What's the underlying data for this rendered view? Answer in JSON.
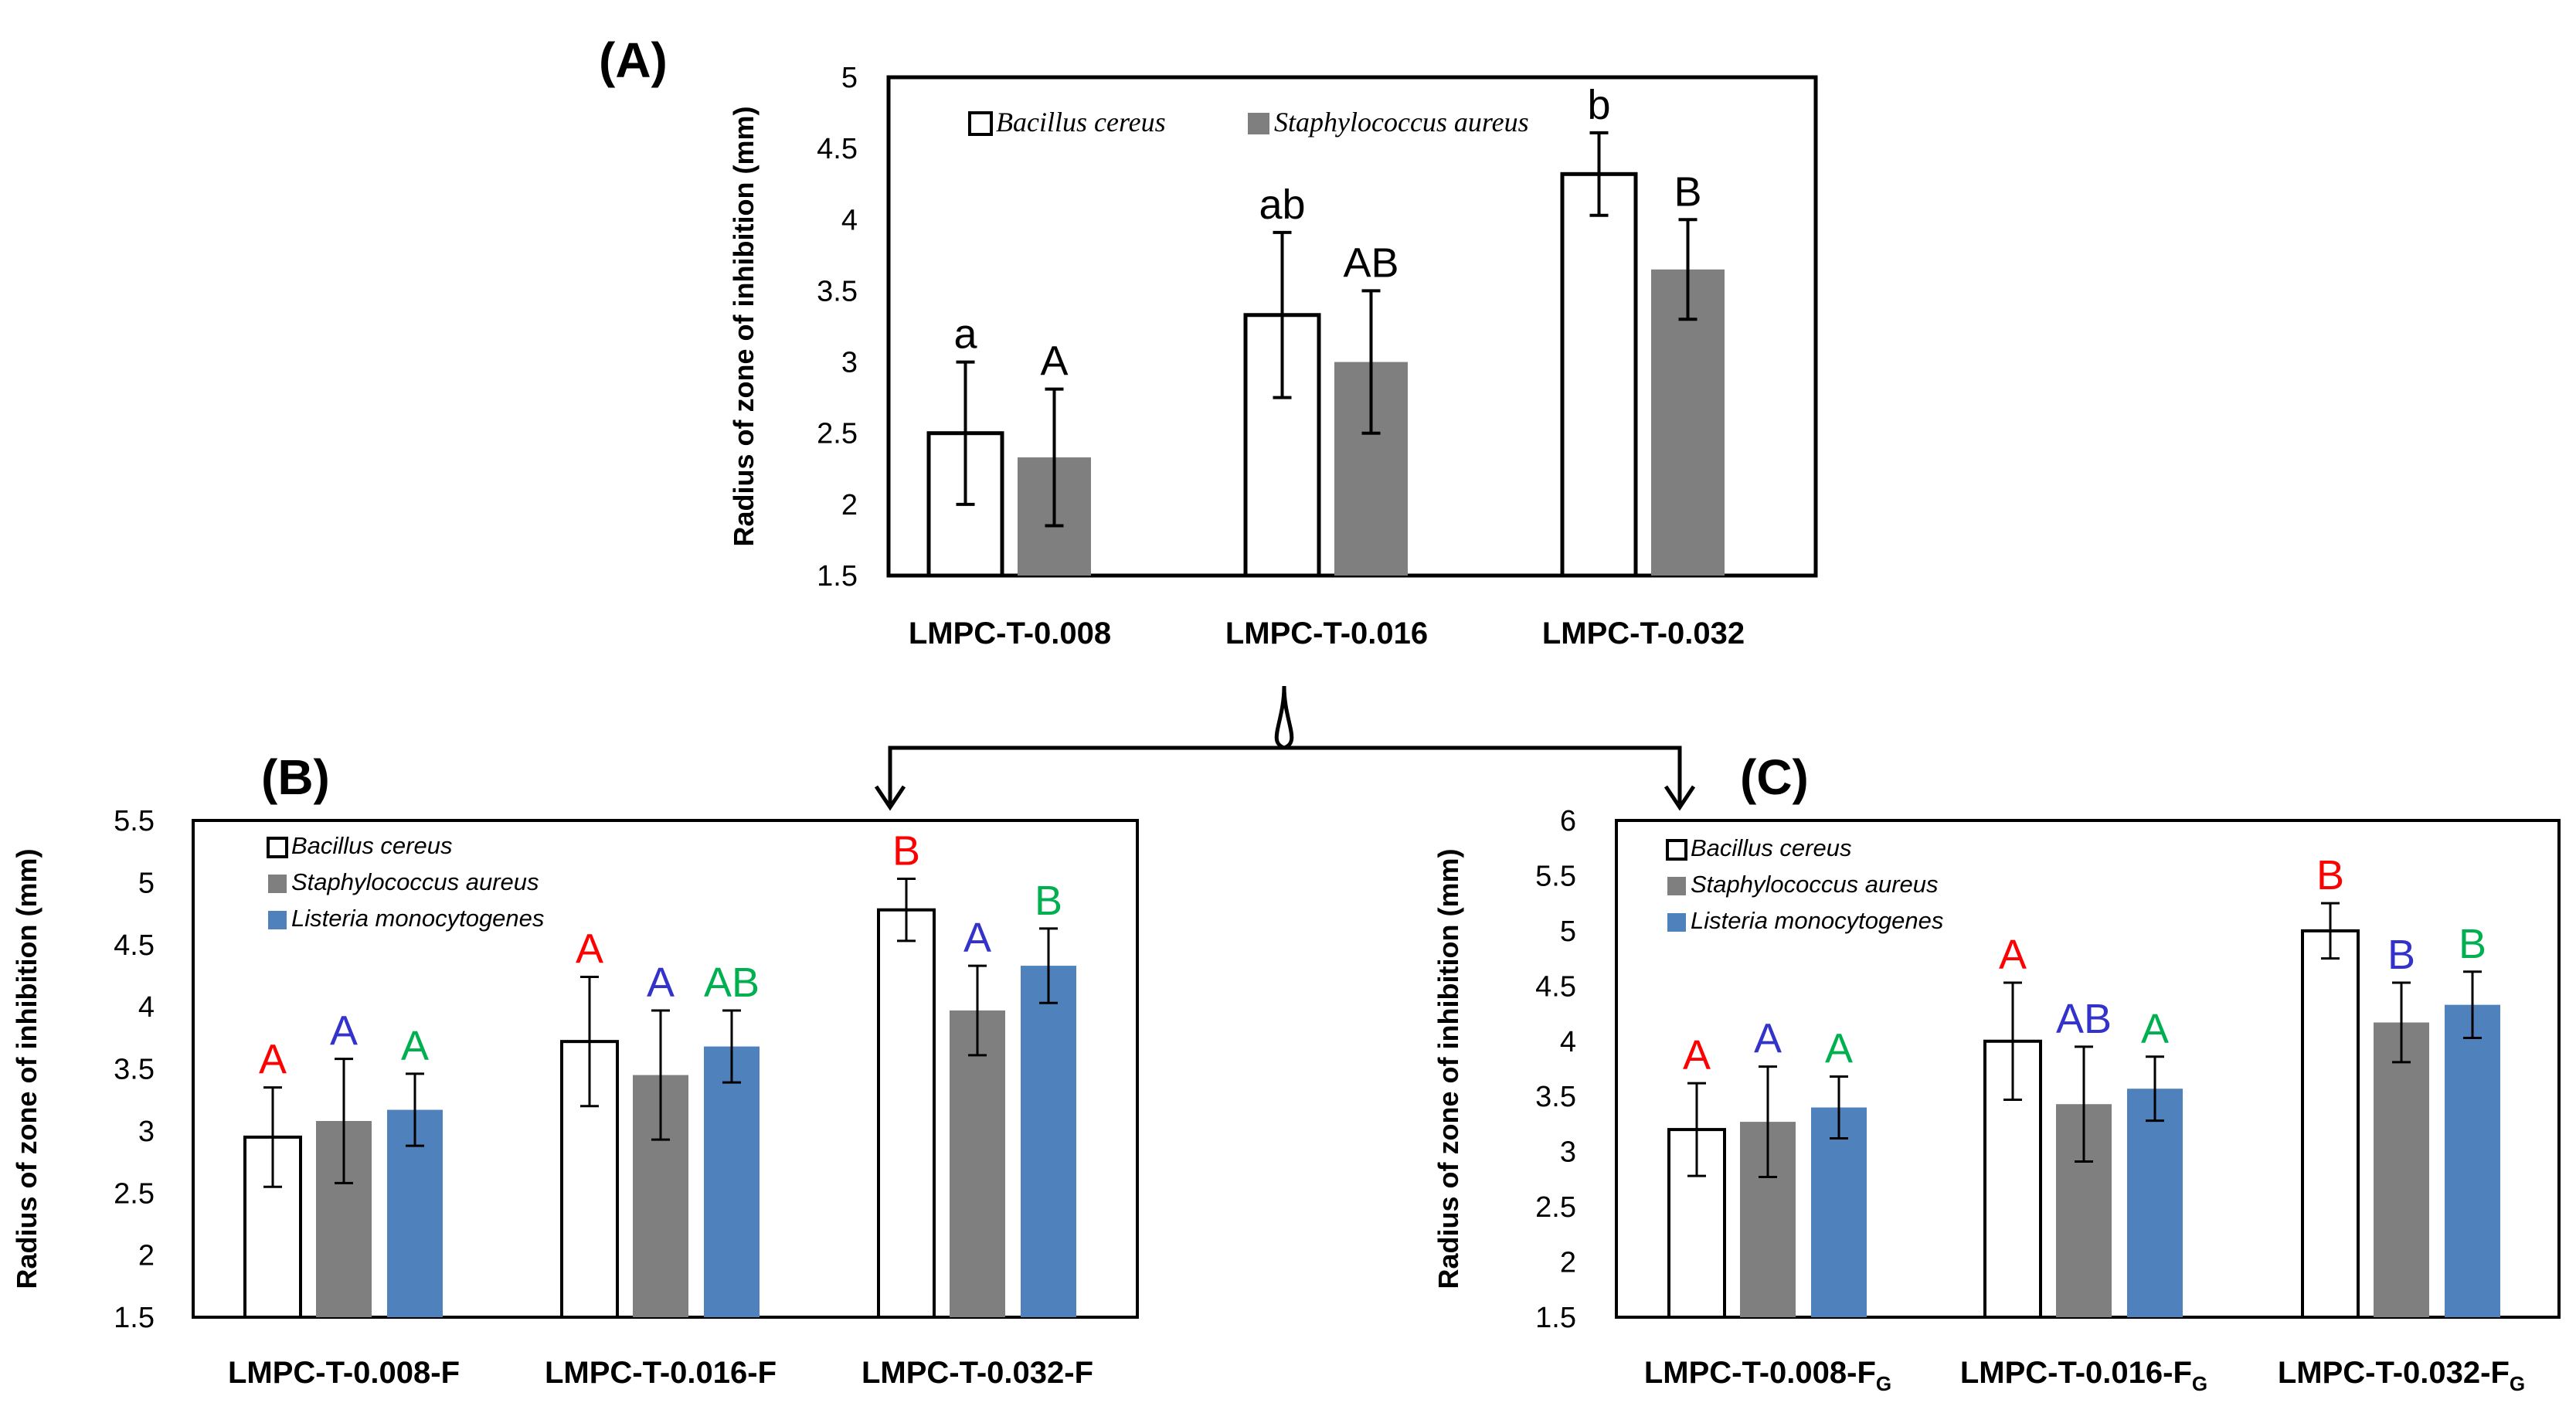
{
  "colors": {
    "bacillus_fill": "#ffffff",
    "staph_fill": "#7f7f7f",
    "listeria_fill": "#4f81bd",
    "letter_red": "#ff0000",
    "letter_blue": "#3333cc",
    "letter_green": "#00b050",
    "axis": "#000000"
  },
  "chart_data": [
    {
      "id": "A",
      "panel_label": "(A)",
      "type": "bar",
      "ylabel": "Radius of zone of inhibition (mm)",
      "ylim": [
        1.5,
        5
      ],
      "yticks": [
        1.5,
        2,
        2.5,
        3,
        3.5,
        4,
        4.5,
        5
      ],
      "ytick_labels": [
        "1.5",
        "2",
        "2.5",
        "3",
        "3.5",
        "4",
        "4.5",
        "5"
      ],
      "legend_position": "top, horizontal",
      "categories": [
        {
          "pre": "LMPC-T-0.008",
          "sub": ""
        },
        {
          "pre": "LMPC-T-0.016",
          "sub": ""
        },
        {
          "pre": "LMPC-T-0.032",
          "sub": ""
        }
      ],
      "series": [
        {
          "name": "Bacillus cereus",
          "color": "#ffffff",
          "italic_serif": true,
          "values": [
            2.5,
            3.33,
            4.32
          ],
          "errors": [
            0.5,
            0.58,
            0.29
          ],
          "letters": [
            "a",
            "ab",
            "b"
          ],
          "letter_color": "#000000"
        },
        {
          "name": "Staphylococcus aureus",
          "color": "#7f7f7f",
          "italic_serif": true,
          "values": [
            2.33,
            3.0,
            3.65
          ],
          "errors": [
            0.48,
            0.5,
            0.35
          ],
          "letters": [
            "A",
            "AB",
            "B"
          ],
          "letter_color": "#000000"
        }
      ]
    },
    {
      "id": "B",
      "panel_label": "(B)",
      "type": "bar",
      "ylabel": "Radius of zone of inhibition (mm)",
      "ylim": [
        1.5,
        5.5
      ],
      "yticks": [
        1.5,
        2,
        2.5,
        3,
        3.5,
        4,
        4.5,
        5,
        5.5
      ],
      "ytick_labels": [
        "1.5",
        "2",
        "2.5",
        "3",
        "3.5",
        "4",
        "4.5",
        "5",
        "5.5"
      ],
      "legend_position": "top-left, vertical",
      "categories": [
        {
          "pre": "LMPC-T-0.008-F",
          "sub": ""
        },
        {
          "pre": "LMPC-T-0.016-F",
          "sub": ""
        },
        {
          "pre": "LMPC-T-0.032-F",
          "sub": ""
        }
      ],
      "series": [
        {
          "name": "Bacillus cereus",
          "color": "#ffffff",
          "italic_serif": false,
          "values": [
            2.95,
            3.72,
            4.78
          ],
          "errors": [
            0.4,
            0.52,
            0.25
          ],
          "letters": [
            "A",
            "A",
            "B"
          ],
          "letter_color": "#ff0000"
        },
        {
          "name": "Staphylococcus aureus",
          "color": "#7f7f7f",
          "italic_serif": false,
          "values": [
            3.08,
            3.45,
            3.97
          ],
          "errors": [
            0.5,
            0.52,
            0.36
          ],
          "letters": [
            "A",
            "A",
            "A"
          ],
          "letter_color": "#3333cc"
        },
        {
          "name": "Listeria monocytogenes",
          "color": "#4f81bd",
          "italic_serif": false,
          "values": [
            3.17,
            3.68,
            4.33
          ],
          "errors": [
            0.29,
            0.29,
            0.3
          ],
          "letters": [
            "A",
            "AB",
            "B"
          ],
          "letter_color": "#00b050"
        }
      ]
    },
    {
      "id": "C",
      "panel_label": "(C)",
      "type": "bar",
      "ylabel": "Radius of zone of inhibition (mm)",
      "ylim": [
        1.5,
        6
      ],
      "yticks": [
        1.5,
        2,
        2.5,
        3,
        3.5,
        4,
        4.5,
        5,
        5.5,
        6
      ],
      "ytick_labels": [
        "1.5",
        "2",
        "2.5",
        "3",
        "3.5",
        "4",
        "4.5",
        "5",
        "5.5",
        "6"
      ],
      "legend_position": "top-left, vertical",
      "categories": [
        {
          "pre": "LMPC-T-0.008-F",
          "sub": "G"
        },
        {
          "pre": "LMPC-T-0.016-F",
          "sub": "G"
        },
        {
          "pre": "LMPC-T-0.032-F",
          "sub": "G"
        }
      ],
      "series": [
        {
          "name": "Bacillus cereus",
          "color": "#ffffff",
          "italic_serif": false,
          "values": [
            3.2,
            4.0,
            5.0
          ],
          "errors": [
            0.42,
            0.53,
            0.25
          ],
          "letters": [
            "A",
            "A",
            "B"
          ],
          "letter_color": "#ff0000"
        },
        {
          "name": "Staphylococcus aureus",
          "color": "#7f7f7f",
          "italic_serif": false,
          "values": [
            3.27,
            3.43,
            4.17
          ],
          "errors": [
            0.5,
            0.52,
            0.36
          ],
          "letters": [
            "A",
            "AB",
            "B"
          ],
          "letter_color": "#3333cc"
        },
        {
          "name": "Listeria monocytogenes",
          "color": "#4f81bd",
          "italic_serif": false,
          "values": [
            3.4,
            3.57,
            4.33
          ],
          "errors": [
            0.28,
            0.29,
            0.3
          ],
          "letters": [
            "A",
            "A",
            "B"
          ],
          "letter_color": "#00b050"
        }
      ]
    }
  ]
}
